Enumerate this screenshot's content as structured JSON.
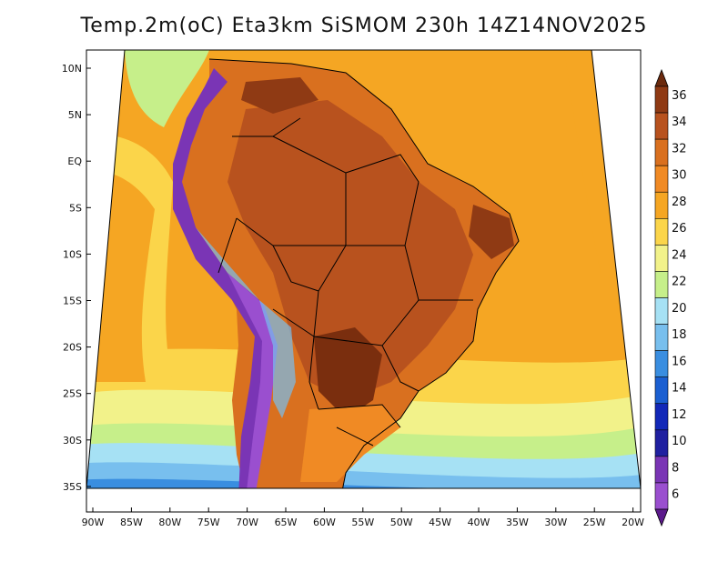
{
  "title": "Temp.2m(oC) Eta3km SiSMOM 230h 14Z14NOV2025",
  "map": {
    "lat_labels": [
      "10N",
      "5N",
      "EQ",
      "5S",
      "10S",
      "15S",
      "20S",
      "25S",
      "30S",
      "35S"
    ],
    "lon_labels": [
      "90W",
      "85W",
      "80W",
      "75W",
      "70W",
      "65W",
      "60W",
      "55W",
      "50W",
      "45W",
      "40W",
      "35W",
      "30W",
      "25W",
      "20W"
    ],
    "colors": {
      "ocean_warm": "#f5a623",
      "ocean_mid": "#fbd54a",
      "ocean_cool": "#f2f28a",
      "land_hot": "#b8521e",
      "land_very_hot": "#7a2e0e",
      "andes": "#7a35b5",
      "border": "#000000"
    }
  },
  "colorbar": {
    "ticks": [
      "36",
      "34",
      "32",
      "30",
      "28",
      "26",
      "24",
      "22",
      "20",
      "18",
      "16",
      "14",
      "12",
      "10",
      "8",
      "6"
    ],
    "colors": [
      "#6b2a0e",
      "#8f3a14",
      "#b8521e",
      "#d9701f",
      "#f08a24",
      "#f5a623",
      "#fbd54a",
      "#f2f28a",
      "#c6ef8a",
      "#a6e1f4",
      "#78bfee",
      "#3a8ee0",
      "#1b5fd1",
      "#1228b8",
      "#2020a0",
      "#7a35b5",
      "#9a4fcf",
      "#5c1a8c"
    ]
  }
}
